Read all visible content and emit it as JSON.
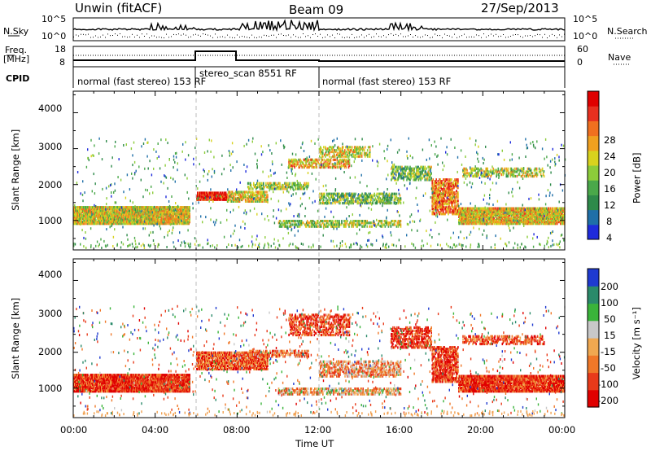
{
  "header": {
    "station": "Unwin (fitACF)",
    "beam": "Beam 09",
    "date": "27/Sep/2013"
  },
  "top_panels": {
    "nsky_label": "N.Sky",
    "nsearch_label": "N.Search",
    "nsky_ticks": [
      "10^5",
      "10^0"
    ],
    "nsearch_ticks": [
      "10^5",
      "10^0"
    ],
    "freq_label_1": "Freq.",
    "freq_label_2": "[MHz]",
    "freq_ticks": [
      "18",
      "8"
    ],
    "nave_label": "Nave",
    "nave_ticks": [
      "60",
      "0"
    ],
    "cpid_label": "CPID",
    "cpid_segments": [
      {
        "text": "normal (fast stereo) 153 RF",
        "start_hour": 0,
        "end_hour": 6
      },
      {
        "text": "stereo_scan 8551 RF",
        "start_hour": 6,
        "end_hour": 12
      },
      {
        "text": "normal (fast stereo) 153 RF",
        "start_hour": 12,
        "end_hour": 24
      }
    ]
  },
  "x_axis": {
    "label": "Time UT",
    "ticks": [
      "00:00",
      "04:00",
      "08:00",
      "12:00",
      "16:00",
      "20:00",
      "00:00"
    ]
  },
  "power_panel": {
    "ylabel": "Slant Range [km]",
    "yticks": [
      "4000",
      "3000",
      "2000",
      "1000"
    ],
    "colorbar_label": "Power [dB]",
    "colorbar_ticks": [
      "28",
      "24",
      "20",
      "16",
      "12",
      "8",
      "4"
    ]
  },
  "velocity_panel": {
    "ylabel": "Slant Range [km]",
    "yticks": [
      "4000",
      "3000",
      "2000",
      "1000"
    ],
    "colorbar_label": "Velocity [m s⁻¹]",
    "colorbar_ticks": [
      "200",
      "100",
      "50",
      "15",
      "-15",
      "-50",
      "-100",
      "-200"
    ]
  },
  "colors": {
    "power_scale": [
      "#1f2bdc",
      "#1f6fa8",
      "#2e8a4a",
      "#4aa84a",
      "#8ccc3a",
      "#d8d21e",
      "#f0a020",
      "#f07020",
      "#e83020",
      "#e00000"
    ],
    "velocity_scale": [
      "#e00000",
      "#e83a1a",
      "#f07828",
      "#f0a850",
      "#c8c8c8",
      "#3ab43a",
      "#2a8a6a",
      "#1f3ad0"
    ]
  },
  "chart_data": [
    {
      "type": "heatmap",
      "title": "Power",
      "x_units": "hours UT",
      "y_units": "km",
      "xlim": [
        0,
        24
      ],
      "ylim": [
        180,
        4600
      ],
      "zlim": [
        0,
        30
      ],
      "blobs": [
        {
          "x0": 0,
          "x1": 5.7,
          "y0": 880,
          "y1": 1380,
          "z": 17,
          "density": 0.9
        },
        {
          "x0": 6.0,
          "x1": 7.5,
          "y0": 1550,
          "y1": 1780,
          "z": 28,
          "density": 0.9
        },
        {
          "x0": 7.5,
          "x1": 9.5,
          "y0": 1500,
          "y1": 1800,
          "z": 17,
          "density": 0.6
        },
        {
          "x0": 8.5,
          "x1": 11.5,
          "y0": 1850,
          "y1": 2050,
          "z": 14,
          "density": 0.55
        },
        {
          "x0": 10.5,
          "x1": 13.5,
          "y0": 2450,
          "y1": 2700,
          "z": 19,
          "density": 0.5
        },
        {
          "x0": 12.0,
          "x1": 14.5,
          "y0": 2750,
          "y1": 3050,
          "z": 17,
          "density": 0.4
        },
        {
          "x0": 12.0,
          "x1": 16.0,
          "y0": 1450,
          "y1": 1750,
          "z": 12,
          "density": 0.5
        },
        {
          "x0": 10.0,
          "x1": 16.0,
          "y0": 800,
          "y1": 1000,
          "z": 14,
          "density": 0.5
        },
        {
          "x0": 15.5,
          "x1": 17.5,
          "y0": 2100,
          "y1": 2500,
          "z": 12,
          "density": 0.5
        },
        {
          "x0": 17.5,
          "x1": 18.8,
          "y0": 1150,
          "y1": 2150,
          "z": 22,
          "density": 0.6
        },
        {
          "x0": 18.8,
          "x1": 24,
          "y0": 880,
          "y1": 1350,
          "z": 18,
          "density": 0.9
        },
        {
          "x0": 19.0,
          "x1": 23.0,
          "y0": 2200,
          "y1": 2450,
          "z": 15,
          "density": 0.4
        }
      ]
    },
    {
      "type": "heatmap",
      "title": "Velocity",
      "x_units": "hours UT",
      "y_units": "km",
      "xlim": [
        0,
        24
      ],
      "ylim": [
        180,
        4600
      ],
      "zlim": [
        -250,
        250
      ],
      "blobs": [
        {
          "x0": 0,
          "x1": 5.7,
          "y0": 880,
          "y1": 1380,
          "z": -200,
          "density": 0.9
        },
        {
          "x0": 6.0,
          "x1": 9.5,
          "y0": 1500,
          "y1": 2000,
          "z": -150,
          "density": 0.8
        },
        {
          "x0": 8.5,
          "x1": 11.5,
          "y0": 1850,
          "y1": 2050,
          "z": -120,
          "density": 0.5
        },
        {
          "x0": 10.5,
          "x1": 13.5,
          "y0": 2450,
          "y1": 3050,
          "z": -180,
          "density": 0.45
        },
        {
          "x0": 12.0,
          "x1": 16.0,
          "y0": 1300,
          "y1": 1750,
          "z": -90,
          "density": 0.5
        },
        {
          "x0": 10.0,
          "x1": 16.0,
          "y0": 800,
          "y1": 1000,
          "z": -60,
          "density": 0.5
        },
        {
          "x0": 15.5,
          "x1": 17.5,
          "y0": 2100,
          "y1": 2700,
          "z": -200,
          "density": 0.5
        },
        {
          "x0": 17.5,
          "x1": 18.8,
          "y0": 1150,
          "y1": 2150,
          "z": -200,
          "density": 0.6
        },
        {
          "x0": 18.8,
          "x1": 24,
          "y0": 880,
          "y1": 1350,
          "z": -200,
          "density": 0.9
        },
        {
          "x0": 19.0,
          "x1": 23.0,
          "y0": 2200,
          "y1": 2450,
          "z": -170,
          "density": 0.4
        }
      ]
    }
  ]
}
